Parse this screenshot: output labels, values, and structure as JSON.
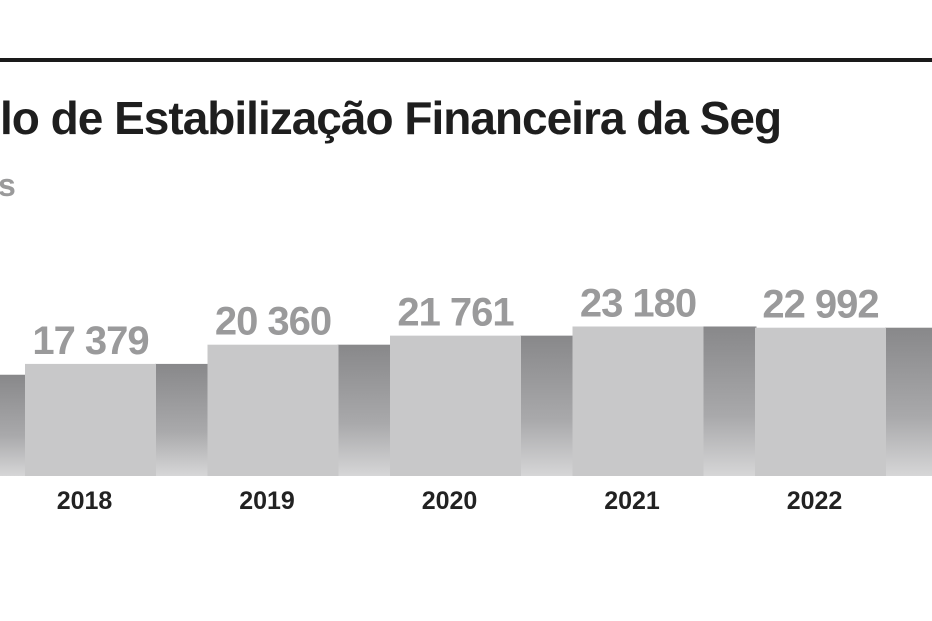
{
  "chart_data": {
    "type": "bar",
    "title": "lo de Estabilização Financeira da Seg",
    "subtitle": "s",
    "categories": [
      null,
      "2018",
      "2019",
      "2020",
      "2021",
      "2022"
    ],
    "values": [
      15700,
      17379,
      20360,
      21761,
      23180,
      22992
    ],
    "value_labels": [
      null,
      "17 379",
      "20 360",
      "21 761",
      "23 180",
      "22 992"
    ],
    "color": "#c8c8c9",
    "ylim": [
      0,
      73800
    ]
  }
}
